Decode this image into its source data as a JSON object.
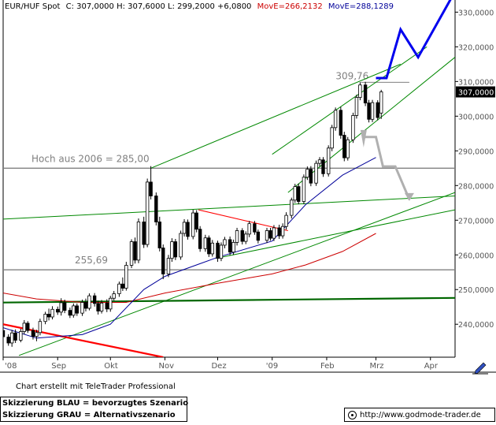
{
  "header": {
    "symbol": "EUR/HUF Spot",
    "quote": "C: 307,0000 H: 307,6000 L: 299,2000 +6,0800",
    "ma1": "MovE=266,2132",
    "ma2": "MovE=288,1289"
  },
  "colors": {
    "price": "#000000",
    "ma1": "#cc0000",
    "ma2": "#000099",
    "trend": "#008800",
    "support_main": "#006600",
    "resist_red": "#ff0000",
    "hline": "#808080",
    "scenario_blue": "#0000ee",
    "scenario_grey": "#b0b0b0"
  },
  "footer": {
    "credit": "Chart erstellt mit TeleTrader Professional",
    "scenario_blue_note": "Skizzierung BLAU = bevorzugtes Szenario",
    "scenario_grey_note": "Skizzierung GRAU = Alternativszenario",
    "website": "http://www.godmode-trader.de",
    "icon": "pencil-icon"
  },
  "chart_data": {
    "type": "candlestick",
    "title": "EUR/HUF Spot",
    "x_labels": [
      "'08",
      "Sep",
      "Okt",
      "Nov",
      "Dez",
      "'09",
      "Feb",
      "Mrz",
      "Apr"
    ],
    "x_label_dates": [
      "2008-08-01",
      "2008-09-01",
      "2008-10-01",
      "2008-11-01",
      "2008-12-01",
      "2009-01-01",
      "2009-02-01",
      "2009-03-01",
      "2009-04-01"
    ],
    "x_range": [
      "2008-08-01",
      "2009-04-15"
    ],
    "y_ticks": [
      240,
      250,
      260,
      270,
      280,
      290,
      300,
      310,
      320,
      330
    ],
    "y_tick_labels": [
      "240,0000",
      "250,0000",
      "260,0000",
      "270,0000",
      "280,0000",
      "290,0000",
      "300,0000",
      "310,0000",
      "320,0000",
      "330,0000"
    ],
    "ylim": [
      230.5,
      333.5
    ],
    "last_price_label": "307,0000",
    "last": 307.0,
    "high": 307.6,
    "low": 299.2,
    "change": 6.08,
    "horizontal_lines": [
      {
        "name": "Hoch aus 2006",
        "label": "Hoch aus 2006 = 285,00",
        "value": 285.0
      },
      {
        "name": "255,69",
        "label": "255,69",
        "value": 255.69
      }
    ],
    "annotations": [
      {
        "label": "309,76",
        "value": 309.76,
        "date": "2009-02-24"
      }
    ],
    "moving_averages": [
      {
        "name": "MovE",
        "label": "MovE=266,2132",
        "last": 266.2132,
        "points": [
          [
            "2008-08-01",
            249.0
          ],
          [
            "2008-08-20",
            247.3
          ],
          [
            "2008-09-15",
            246.3
          ],
          [
            "2008-10-10",
            246.3
          ],
          [
            "2008-11-01",
            249.0
          ],
          [
            "2008-12-01",
            251.8
          ],
          [
            "2009-01-01",
            254.5
          ],
          [
            "2009-01-20",
            257.1
          ],
          [
            "2009-02-10",
            261.0
          ],
          [
            "2009-03-01",
            266.2
          ]
        ]
      },
      {
        "name": "MovE",
        "label": "MovE=288,1289",
        "last": 288.1289,
        "points": [
          [
            "2008-08-01",
            239.0
          ],
          [
            "2008-08-20",
            236.0
          ],
          [
            "2008-09-15",
            237.0
          ],
          [
            "2008-10-01",
            240.0
          ],
          [
            "2008-10-20",
            250.0
          ],
          [
            "2008-11-01",
            253.8
          ],
          [
            "2008-12-01",
            259.3
          ],
          [
            "2009-01-01",
            264.0
          ],
          [
            "2009-01-20",
            274.5
          ],
          [
            "2009-02-10",
            283.0
          ],
          [
            "2009-03-01",
            288.1
          ]
        ]
      }
    ],
    "trend_lines": [
      {
        "color": "trend",
        "from": [
          "2008-10-24",
          285.0
        ],
        "to": [
          "2009-03-15",
          315.0
        ]
      },
      {
        "color": "trend",
        "from": [
          "2009-01-01",
          289.0
        ],
        "to": [
          "2009-03-30",
          320.0
        ]
      },
      {
        "color": "trend",
        "from": [
          "2009-01-10",
          278.0
        ],
        "to": [
          "2009-04-15",
          317.0
        ]
      },
      {
        "color": "trend",
        "from": [
          "2008-07-20",
          270.0
        ],
        "to": [
          "2009-04-15",
          277.0
        ]
      },
      {
        "color": "trend",
        "from": [
          "2008-08-10",
          231.0
        ],
        "to": [
          "2009-04-15",
          278.0
        ]
      },
      {
        "color": "trend",
        "from": [
          "2008-11-30",
          259.0
        ],
        "to": [
          "2009-04-15",
          273.0
        ]
      },
      {
        "color": "resist_red",
        "from": [
          "2008-11-20",
          273.0
        ],
        "to": [
          "2009-01-10",
          267.0
        ]
      },
      {
        "color": "support_main",
        "from": [
          "2008-07-20",
          246.2
        ],
        "to": [
          "2009-04-15",
          247.6
        ]
      },
      {
        "color": "resist_red",
        "from": [
          "2008-08-01",
          240.0
        ],
        "to": [
          "2008-10-31",
          230.5
        ]
      }
    ],
    "scenario_blue": [
      [
        "2009-03-01",
        311.0
      ],
      [
        "2009-03-07",
        311.0
      ],
      [
        "2009-03-15",
        325.0
      ],
      [
        "2009-03-25",
        317.0
      ],
      [
        "2009-04-15",
        336.0
      ]
    ],
    "scenario_grey": [
      [
        "2009-02-22",
        294.0
      ],
      [
        "2009-03-01",
        294.0
      ],
      [
        "2009-03-05",
        285.5
      ],
      [
        "2009-03-12",
        285.5
      ],
      [
        "2009-03-20",
        276.0
      ]
    ],
    "candles": [
      {
        "d": "2008-08-01",
        "o": 238.2,
        "h": 239.2,
        "l": 235.0,
        "c": 236.4
      },
      {
        "d": "2008-08-04",
        "o": 236.3,
        "h": 237.1,
        "l": 233.8,
        "c": 234.6
      },
      {
        "d": "2008-08-06",
        "o": 234.6,
        "h": 238.4,
        "l": 233.5,
        "c": 237.5
      },
      {
        "d": "2008-08-08",
        "o": 237.5,
        "h": 238.5,
        "l": 234.6,
        "c": 235.4
      },
      {
        "d": "2008-08-11",
        "o": 235.4,
        "h": 238.7,
        "l": 234.8,
        "c": 237.9
      },
      {
        "d": "2008-08-13",
        "o": 237.9,
        "h": 241.2,
        "l": 237.1,
        "c": 240.3
      },
      {
        "d": "2008-08-15",
        "o": 240.3,
        "h": 240.9,
        "l": 237.5,
        "c": 238.2
      },
      {
        "d": "2008-08-18",
        "o": 238.2,
        "h": 239.0,
        "l": 235.6,
        "c": 236.5
      },
      {
        "d": "2008-08-20",
        "o": 236.5,
        "h": 238.4,
        "l": 235.1,
        "c": 237.6
      },
      {
        "d": "2008-08-22",
        "o": 237.6,
        "h": 241.6,
        "l": 236.8,
        "c": 240.8
      },
      {
        "d": "2008-08-25",
        "o": 240.8,
        "h": 243.6,
        "l": 240.0,
        "c": 242.9
      },
      {
        "d": "2008-08-27",
        "o": 242.9,
        "h": 244.5,
        "l": 241.1,
        "c": 242.1
      },
      {
        "d": "2008-08-29",
        "o": 242.1,
        "h": 245.2,
        "l": 241.4,
        "c": 244.3
      },
      {
        "d": "2008-09-01",
        "o": 244.3,
        "h": 245.1,
        "l": 242.7,
        "c": 243.5
      },
      {
        "d": "2008-09-03",
        "o": 243.5,
        "h": 247.5,
        "l": 242.5,
        "c": 246.2
      },
      {
        "d": "2008-09-05",
        "o": 246.2,
        "h": 247.1,
        "l": 243.2,
        "c": 244.0
      },
      {
        "d": "2008-09-08",
        "o": 244.0,
        "h": 244.8,
        "l": 241.8,
        "c": 242.6
      },
      {
        "d": "2008-09-10",
        "o": 242.6,
        "h": 246.0,
        "l": 241.9,
        "c": 245.3
      },
      {
        "d": "2008-09-12",
        "o": 245.3,
        "h": 246.0,
        "l": 242.4,
        "c": 243.2
      },
      {
        "d": "2008-09-15",
        "o": 243.2,
        "h": 247.1,
        "l": 242.4,
        "c": 246.3
      },
      {
        "d": "2008-09-17",
        "o": 246.3,
        "h": 247.4,
        "l": 243.7,
        "c": 244.6
      },
      {
        "d": "2008-09-19",
        "o": 244.6,
        "h": 248.9,
        "l": 244.0,
        "c": 248.2
      },
      {
        "d": "2008-09-22",
        "o": 248.2,
        "h": 249.0,
        "l": 245.1,
        "c": 246.0
      },
      {
        "d": "2008-09-24",
        "o": 246.0,
        "h": 246.8,
        "l": 242.8,
        "c": 243.8
      },
      {
        "d": "2008-09-26",
        "o": 243.8,
        "h": 247.0,
        "l": 243.1,
        "c": 246.1
      },
      {
        "d": "2008-09-29",
        "o": 246.1,
        "h": 247.2,
        "l": 243.5,
        "c": 244.4
      },
      {
        "d": "2008-10-01",
        "o": 244.4,
        "h": 248.2,
        "l": 243.6,
        "c": 247.5
      },
      {
        "d": "2008-10-03",
        "o": 247.5,
        "h": 249.6,
        "l": 246.8,
        "c": 248.8
      },
      {
        "d": "2008-10-06",
        "o": 248.8,
        "h": 252.3,
        "l": 247.9,
        "c": 251.6
      },
      {
        "d": "2008-10-08",
        "o": 251.6,
        "h": 253.5,
        "l": 249.6,
        "c": 250.4
      },
      {
        "d": "2008-10-10",
        "o": 250.4,
        "h": 258.0,
        "l": 249.7,
        "c": 257.0
      },
      {
        "d": "2008-10-13",
        "o": 257.0,
        "h": 264.5,
        "l": 256.2,
        "c": 263.8
      },
      {
        "d": "2008-10-15",
        "o": 263.8,
        "h": 265.0,
        "l": 257.5,
        "c": 258.5
      },
      {
        "d": "2008-10-17",
        "o": 258.5,
        "h": 270.5,
        "l": 257.6,
        "c": 269.5
      },
      {
        "d": "2008-10-20",
        "o": 269.5,
        "h": 271.0,
        "l": 262.0,
        "c": 263.0
      },
      {
        "d": "2008-10-22",
        "o": 263.0,
        "h": 282.0,
        "l": 262.2,
        "c": 281.0
      },
      {
        "d": "2008-10-24",
        "o": 281.0,
        "h": 285.6,
        "l": 276.0,
        "c": 277.0
      },
      {
        "d": "2008-10-27",
        "o": 277.0,
        "h": 278.0,
        "l": 268.5,
        "c": 269.5
      },
      {
        "d": "2008-10-29",
        "o": 269.5,
        "h": 271.0,
        "l": 261.0,
        "c": 262.0
      },
      {
        "d": "2008-10-31",
        "o": 262.0,
        "h": 263.0,
        "l": 253.0,
        "c": 254.5
      },
      {
        "d": "2008-11-03",
        "o": 254.5,
        "h": 260.0,
        "l": 253.6,
        "c": 259.0
      },
      {
        "d": "2008-11-05",
        "o": 259.0,
        "h": 264.8,
        "l": 258.0,
        "c": 263.8
      },
      {
        "d": "2008-11-07",
        "o": 263.8,
        "h": 264.6,
        "l": 258.5,
        "c": 259.4
      },
      {
        "d": "2008-11-10",
        "o": 259.4,
        "h": 267.0,
        "l": 258.6,
        "c": 266.2
      },
      {
        "d": "2008-11-12",
        "o": 266.2,
        "h": 270.3,
        "l": 265.3,
        "c": 269.4
      },
      {
        "d": "2008-11-14",
        "o": 269.4,
        "h": 270.2,
        "l": 264.4,
        "c": 265.3
      },
      {
        "d": "2008-11-17",
        "o": 265.3,
        "h": 273.0,
        "l": 264.5,
        "c": 272.1
      },
      {
        "d": "2008-11-19",
        "o": 272.1,
        "h": 272.9,
        "l": 266.5,
        "c": 267.4
      },
      {
        "d": "2008-11-21",
        "o": 267.4,
        "h": 268.3,
        "l": 260.9,
        "c": 261.8
      },
      {
        "d": "2008-11-24",
        "o": 261.8,
        "h": 265.8,
        "l": 260.9,
        "c": 264.9
      },
      {
        "d": "2008-11-26",
        "o": 264.9,
        "h": 265.6,
        "l": 259.4,
        "c": 260.3
      },
      {
        "d": "2008-11-28",
        "o": 260.3,
        "h": 264.3,
        "l": 259.5,
        "c": 263.4
      },
      {
        "d": "2008-12-01",
        "o": 263.4,
        "h": 264.1,
        "l": 258.0,
        "c": 259.0
      },
      {
        "d": "2008-12-03",
        "o": 259.0,
        "h": 263.6,
        "l": 258.2,
        "c": 262.8
      },
      {
        "d": "2008-12-05",
        "o": 262.8,
        "h": 265.2,
        "l": 261.9,
        "c": 264.4
      },
      {
        "d": "2008-12-08",
        "o": 264.4,
        "h": 265.3,
        "l": 259.9,
        "c": 260.8
      },
      {
        "d": "2008-12-10",
        "o": 260.8,
        "h": 264.4,
        "l": 260.0,
        "c": 263.6
      },
      {
        "d": "2008-12-12",
        "o": 263.6,
        "h": 267.8,
        "l": 262.7,
        "c": 267.0
      },
      {
        "d": "2008-12-15",
        "o": 267.0,
        "h": 267.7,
        "l": 263.0,
        "c": 263.9
      },
      {
        "d": "2008-12-17",
        "o": 263.9,
        "h": 266.8,
        "l": 263.1,
        "c": 266.0
      },
      {
        "d": "2008-12-19",
        "o": 266.0,
        "h": 269.8,
        "l": 265.1,
        "c": 269.0
      },
      {
        "d": "2008-12-22",
        "o": 269.0,
        "h": 269.8,
        "l": 265.8,
        "c": 266.6
      },
      {
        "d": "2008-12-24",
        "o": 266.6,
        "h": 267.3,
        "l": 263.3,
        "c": 264.2
      },
      {
        "d": "2008-12-29",
        "o": 264.2,
        "h": 267.8,
        "l": 263.4,
        "c": 267.0
      },
      {
        "d": "2008-12-31",
        "o": 267.0,
        "h": 267.8,
        "l": 264.1,
        "c": 264.8
      },
      {
        "d": "2009-01-02",
        "o": 264.8,
        "h": 268.6,
        "l": 264.0,
        "c": 267.8
      },
      {
        "d": "2009-01-05",
        "o": 267.8,
        "h": 268.7,
        "l": 264.6,
        "c": 265.5
      },
      {
        "d": "2009-01-07",
        "o": 265.5,
        "h": 269.1,
        "l": 264.7,
        "c": 268.2
      },
      {
        "d": "2009-01-09",
        "o": 268.2,
        "h": 272.3,
        "l": 267.3,
        "c": 271.4
      },
      {
        "d": "2009-01-12",
        "o": 271.4,
        "h": 276.5,
        "l": 270.5,
        "c": 275.8
      },
      {
        "d": "2009-01-14",
        "o": 275.8,
        "h": 280.5,
        "l": 275.0,
        "c": 279.7
      },
      {
        "d": "2009-01-16",
        "o": 279.7,
        "h": 280.6,
        "l": 274.6,
        "c": 275.4
      },
      {
        "d": "2009-01-19",
        "o": 275.4,
        "h": 283.2,
        "l": 274.6,
        "c": 282.4
      },
      {
        "d": "2009-01-21",
        "o": 282.4,
        "h": 285.5,
        "l": 281.6,
        "c": 284.7
      },
      {
        "d": "2009-01-23",
        "o": 284.7,
        "h": 285.6,
        "l": 279.8,
        "c": 280.7
      },
      {
        "d": "2009-01-26",
        "o": 280.7,
        "h": 287.2,
        "l": 279.9,
        "c": 286.4
      },
      {
        "d": "2009-01-28",
        "o": 286.4,
        "h": 288.2,
        "l": 285.5,
        "c": 287.4
      },
      {
        "d": "2009-01-30",
        "o": 287.4,
        "h": 288.2,
        "l": 282.5,
        "c": 283.4
      },
      {
        "d": "2009-02-02",
        "o": 283.4,
        "h": 291.6,
        "l": 282.6,
        "c": 290.8
      },
      {
        "d": "2009-02-04",
        "o": 290.8,
        "h": 297.5,
        "l": 289.9,
        "c": 296.7
      },
      {
        "d": "2009-02-06",
        "o": 296.7,
        "h": 302.5,
        "l": 295.8,
        "c": 301.7
      },
      {
        "d": "2009-02-09",
        "o": 301.7,
        "h": 302.7,
        "l": 293.5,
        "c": 294.5
      },
      {
        "d": "2009-02-11",
        "o": 294.5,
        "h": 295.5,
        "l": 287.0,
        "c": 288.0
      },
      {
        "d": "2009-02-13",
        "o": 288.0,
        "h": 294.0,
        "l": 287.2,
        "c": 293.2
      },
      {
        "d": "2009-02-16",
        "o": 293.2,
        "h": 301.0,
        "l": 292.3,
        "c": 300.2
      },
      {
        "d": "2009-02-18",
        "o": 300.2,
        "h": 306.2,
        "l": 299.3,
        "c": 305.4
      },
      {
        "d": "2009-02-20",
        "o": 305.4,
        "h": 309.8,
        "l": 304.6,
        "c": 309.0
      },
      {
        "d": "2009-02-23",
        "o": 309.0,
        "h": 309.9,
        "l": 302.9,
        "c": 303.8
      },
      {
        "d": "2009-02-25",
        "o": 303.8,
        "h": 304.7,
        "l": 298.2,
        "c": 299.1
      },
      {
        "d": "2009-02-27",
        "o": 299.1,
        "h": 304.7,
        "l": 298.3,
        "c": 303.9
      },
      {
        "d": "2009-03-02",
        "o": 303.9,
        "h": 304.6,
        "l": 298.8,
        "c": 299.6
      },
      {
        "d": "2009-03-04",
        "o": 300.9,
        "h": 307.6,
        "l": 299.2,
        "c": 307.0
      }
    ]
  }
}
